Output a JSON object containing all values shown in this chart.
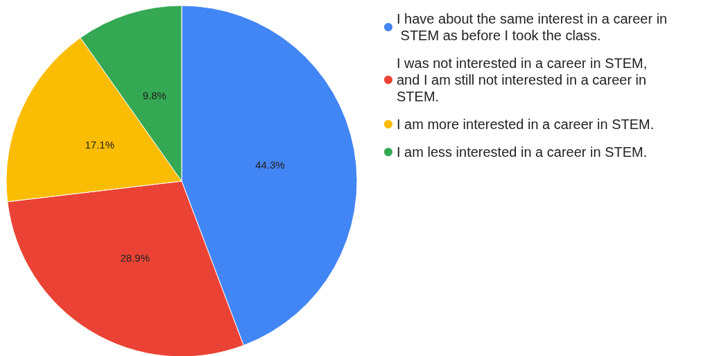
{
  "chart_data": {
    "type": "pie",
    "categories": [
      "I have about the same interest in a career in STEM as before I took the class.",
      "I was not interested in a career in STEM, and I am still not interested in a career in STEM.",
      "I am more interested in a career in STEM.",
      "I am less interested in a career in STEM."
    ],
    "values": [
      44.3,
      28.9,
      17.1,
      9.8
    ],
    "colors": [
      "#4285f4",
      "#ea4335",
      "#fbbc04",
      "#34a853"
    ],
    "value_labels": [
      "44.3%",
      "28.9%",
      "17.1%",
      "9.8%"
    ],
    "legend": "right"
  }
}
